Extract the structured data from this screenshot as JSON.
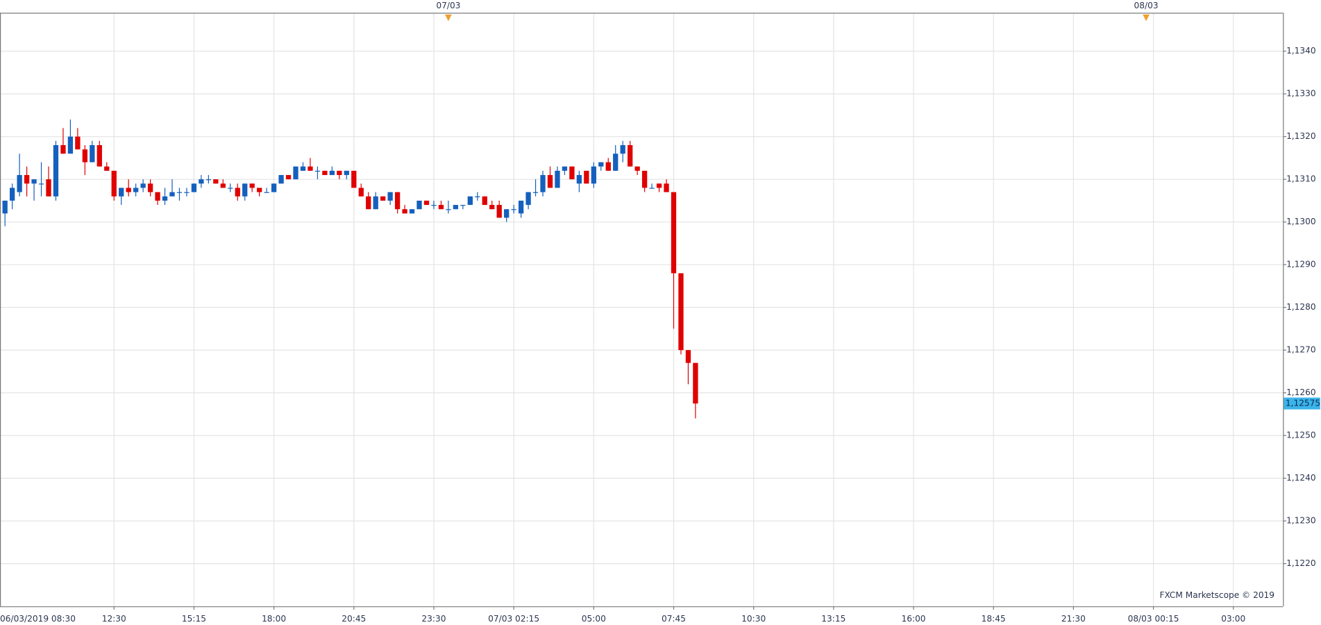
{
  "chart_data": {
    "type": "candlestick",
    "watermark": "FXCM Marketscope © 2019",
    "up_color": "#1560bd",
    "down_color": "#e00000",
    "grid": true,
    "ylim": [
      1.121,
      1.1349
    ],
    "yticks": [
      {
        "value": 1.122,
        "label": "1,1220"
      },
      {
        "value": 1.123,
        "label": "1,1230"
      },
      {
        "value": 1.124,
        "label": "1,1240"
      },
      {
        "value": 1.125,
        "label": "1,1250"
      },
      {
        "value": 1.126,
        "label": "1,1260"
      },
      {
        "value": 1.127,
        "label": "1,1270"
      },
      {
        "value": 1.128,
        "label": "1,1280"
      },
      {
        "value": 1.129,
        "label": "1,1290"
      },
      {
        "value": 1.13,
        "label": "1,1300"
      },
      {
        "value": 1.131,
        "label": "1,1310"
      },
      {
        "value": 1.132,
        "label": "1,1320"
      },
      {
        "value": 1.133,
        "label": "1,1330"
      },
      {
        "value": 1.134,
        "label": "1,1340"
      }
    ],
    "last_price": {
      "value": 1.12575,
      "label": "1,12575",
      "color": "#3ab4ea"
    },
    "day_markers": [
      {
        "value": 62,
        "label": "07/03"
      },
      {
        "value": 158,
        "label": "08/03"
      }
    ],
    "day_marker_color": "#f0a030",
    "categories": [
      "06/03/2019 08:30",
      null,
      null,
      null,
      null,
      null,
      null,
      null,
      null,
      null,
      null,
      null,
      null,
      null,
      null,
      null,
      "12:30",
      null,
      null,
      null,
      null,
      null,
      null,
      null,
      null,
      null,
      null,
      "15:15",
      null,
      null,
      null,
      null,
      null,
      null,
      null,
      null,
      null,
      null,
      "18:00",
      null,
      null,
      null,
      null,
      null,
      null,
      null,
      null,
      null,
      null,
      "20:45",
      null,
      null,
      null,
      null,
      null,
      null,
      null,
      null,
      null,
      null,
      "23:30",
      null,
      null,
      null,
      null,
      null,
      null,
      null,
      null,
      null,
      null,
      "07/03 02:15",
      null,
      null,
      null,
      null,
      null,
      null,
      null,
      null,
      null,
      null,
      "05:00",
      null,
      null,
      null,
      null,
      null,
      null,
      null,
      null,
      null,
      null,
      "07:45",
      null,
      null,
      null,
      null,
      null,
      null,
      null,
      null,
      null,
      null,
      "10:30",
      null,
      null,
      null,
      null,
      null,
      null,
      null,
      null,
      null,
      null,
      "13:15",
      null,
      null,
      null,
      null,
      null,
      null,
      null,
      null,
      null,
      null,
      "16:00",
      null,
      null,
      null,
      null,
      null,
      null,
      null,
      null,
      null,
      null,
      "18:45",
      null,
      null,
      null,
      null,
      null,
      null,
      null,
      null,
      null,
      null,
      "21:30",
      null,
      null,
      null,
      null,
      null,
      null,
      null,
      null,
      null,
      null,
      "08/03 00:15",
      null,
      null,
      null,
      null,
      null,
      null,
      null,
      null,
      null,
      null,
      "03:00",
      null,
      null,
      null,
      null,
      null,
      null
    ],
    "open": [
      null,
      1.1302,
      1.1305,
      1.1307,
      1.1311,
      1.1309,
      1.1309,
      1.131,
      1.1306,
      1.1318,
      1.1316,
      1.132,
      1.1317,
      1.1314,
      1.1318,
      1.1313,
      1.1312,
      1.1306,
      1.1308,
      1.1307,
      1.1308,
      1.1309,
      1.1307,
      1.1305,
      1.1306,
      1.1307,
      1.1307,
      1.1307,
      1.1309,
      1.131,
      1.131,
      1.1309,
      1.1308,
      1.1308,
      1.1306,
      1.1309,
      1.1308,
      1.1307,
      1.1307,
      1.1309,
      1.1311,
      1.131,
      1.1312,
      1.1313,
      1.1312,
      1.1312,
      1.1311,
      1.1312,
      1.1311,
      1.1312,
      1.1308,
      1.1306,
      1.1303,
      1.1306,
      1.1305,
      1.1307,
      1.1303,
      1.1302,
      1.1303,
      1.1305,
      1.1304,
      1.1304,
      1.1303,
      1.1303,
      1.1304,
      1.1304,
      1.1306,
      1.1306,
      1.1304,
      1.1304,
      1.1301,
      1.1303,
      1.1302,
      1.1304,
      1.1307,
      1.1307,
      1.1311,
      1.1308,
      1.1312,
      1.1313,
      1.1309,
      1.1312,
      1.1309,
      1.1313,
      1.1314,
      1.1312,
      1.1316,
      1.1318,
      1.1313,
      1.1312,
      1.1308,
      1.1309,
      1.1309,
      1.1307,
      1.1288,
      1.127,
      1.1267,
      null,
      null,
      null,
      null,
      null,
      null,
      null,
      null,
      null,
      null,
      null,
      null,
      null,
      null,
      null,
      null,
      null,
      null,
      null,
      null,
      null,
      null,
      null,
      null,
      null,
      null,
      null,
      null,
      null,
      null,
      null,
      null,
      null,
      null,
      null,
      null,
      null,
      null,
      null,
      null,
      null,
      null,
      null,
      null,
      null,
      null,
      null,
      null,
      null,
      null,
      null,
      null,
      null,
      null,
      null,
      null,
      null,
      null,
      null,
      null,
      null,
      null,
      null,
      null,
      null,
      null,
      null,
      null,
      null,
      null,
      null,
      null,
      null,
      null,
      null,
      null,
      null,
      null,
      null,
      null
    ],
    "high": [
      null,
      1.1305,
      1.1309,
      1.1316,
      1.1313,
      1.131,
      1.1314,
      1.1313,
      1.1319,
      1.1322,
      1.1324,
      1.1322,
      1.1318,
      1.1319,
      1.1319,
      1.1314,
      1.1312,
      1.1308,
      1.131,
      1.1309,
      1.131,
      1.131,
      1.1307,
      1.1308,
      1.131,
      1.1308,
      1.1308,
      1.1309,
      1.1311,
      1.1311,
      1.131,
      1.131,
      1.1309,
      1.1309,
      1.1309,
      1.1309,
      1.1308,
      1.1308,
      1.1309,
      1.1311,
      1.1311,
      1.1313,
      1.1314,
      1.1315,
      1.1313,
      1.1312,
      1.1313,
      1.1312,
      1.1312,
      1.1312,
      1.1309,
      1.1307,
      1.1307,
      1.1306,
      1.1307,
      1.1307,
      1.1304,
      1.1303,
      1.1305,
      1.1305,
      1.1305,
      1.1305,
      1.1305,
      1.1304,
      1.1304,
      1.1306,
      1.1307,
      1.1306,
      1.1305,
      1.1305,
      1.1303,
      1.1304,
      1.1305,
      1.1307,
      1.131,
      1.1312,
      1.1313,
      1.1313,
      1.1313,
      1.1313,
      1.1312,
      1.1312,
      1.1314,
      1.1314,
      1.1315,
      1.1318,
      1.1319,
      1.1319,
      1.1313,
      1.1312,
      1.1309,
      1.1309,
      1.131,
      1.1307,
      1.1288,
      1.127,
      1.1267,
      null,
      null,
      null,
      null,
      null,
      null,
      null,
      null,
      null,
      null,
      null,
      null,
      null,
      null,
      null,
      null,
      null,
      null,
      null,
      null,
      null,
      null,
      null,
      null,
      null,
      null,
      null,
      null,
      null,
      null,
      null,
      null,
      null,
      null,
      null,
      null,
      null,
      null,
      null,
      null,
      null,
      null,
      null,
      null,
      null,
      null,
      null,
      null,
      null,
      null,
      null,
      null,
      null,
      null,
      null,
      null,
      null,
      null,
      null,
      null,
      null,
      null,
      null,
      null,
      null,
      null,
      null,
      null,
      null,
      null,
      null,
      null,
      null,
      null,
      null,
      null,
      null,
      null,
      null,
      null
    ],
    "low": [
      null,
      1.1299,
      1.1303,
      1.1306,
      1.1306,
      1.1305,
      1.1306,
      1.1306,
      1.1305,
      1.1316,
      1.1316,
      1.1317,
      1.1311,
      1.1314,
      1.1313,
      1.1312,
      1.1305,
      1.1304,
      1.1306,
      1.1306,
      1.1307,
      1.1306,
      1.1304,
      1.1304,
      1.1306,
      1.1305,
      1.1306,
      1.1307,
      1.1308,
      1.1309,
      1.1309,
      1.1308,
      1.1307,
      1.1305,
      1.1305,
      1.1307,
      1.1306,
      1.1307,
      1.1307,
      1.1309,
      1.131,
      1.131,
      1.1312,
      1.1312,
      1.131,
      1.1311,
      1.1311,
      1.131,
      1.131,
      1.1308,
      1.1306,
      1.1303,
      1.1303,
      1.1305,
      1.1304,
      1.1302,
      1.1302,
      1.1302,
      1.1303,
      1.1304,
      1.1303,
      1.1303,
      1.1302,
      1.1303,
      1.1303,
      1.1304,
      1.1305,
      1.1304,
      1.1303,
      1.1301,
      1.13,
      1.1302,
      1.1301,
      1.1303,
      1.1306,
      1.1306,
      1.1308,
      1.1308,
      1.1311,
      1.131,
      1.1307,
      1.1309,
      1.1308,
      1.1312,
      1.1312,
      1.1312,
      1.1314,
      1.1313,
      1.1311,
      1.1307,
      1.1308,
      1.1307,
      1.1307,
      1.1275,
      1.1269,
      1.1262,
      1.1254,
      null,
      null,
      null,
      null,
      null,
      null,
      null,
      null,
      null,
      null,
      null,
      null,
      null,
      null,
      null,
      null,
      null,
      null,
      null,
      null,
      null,
      null,
      null,
      null,
      null,
      null,
      null,
      null,
      null,
      null,
      null,
      null,
      null,
      null,
      null,
      null,
      null,
      null,
      null,
      null,
      null,
      null,
      null,
      null,
      null,
      null,
      null,
      null,
      null,
      null,
      null,
      null,
      null,
      null,
      null,
      null,
      null,
      null,
      null,
      null,
      null,
      null,
      null,
      null,
      null,
      null,
      null,
      null,
      null,
      null,
      null,
      null,
      null,
      null,
      null,
      null,
      null,
      null,
      null,
      null
    ],
    "close": [
      null,
      1.1305,
      1.1308,
      1.1311,
      1.1309,
      1.131,
      1.1309,
      1.1306,
      1.1318,
      1.1316,
      1.132,
      1.1317,
      1.1314,
      1.1318,
      1.1313,
      1.1312,
      1.1306,
      1.1308,
      1.1307,
      1.1308,
      1.1309,
      1.1307,
      1.1305,
      1.1306,
      1.1307,
      1.1307,
      1.1307,
      1.1309,
      1.131,
      1.131,
      1.1309,
      1.1308,
      1.1308,
      1.1306,
      1.1309,
      1.1308,
      1.1307,
      1.1307,
      1.1309,
      1.1311,
      1.131,
      1.1313,
      1.1313,
      1.1312,
      1.1312,
      1.1311,
      1.1312,
      1.1311,
      1.1312,
      1.1308,
      1.1306,
      1.1303,
      1.1306,
      1.1305,
      1.1307,
      1.1303,
      1.1302,
      1.1303,
      1.1305,
      1.1304,
      1.1304,
      1.1303,
      1.1303,
      1.1304,
      1.1304,
      1.1306,
      1.1306,
      1.1304,
      1.1303,
      1.1301,
      1.1303,
      1.1303,
      1.1305,
      1.1307,
      1.1307,
      1.1311,
      1.1308,
      1.1312,
      1.1313,
      1.131,
      1.1311,
      1.1309,
      1.1313,
      1.1314,
      1.1312,
      1.1316,
      1.1318,
      1.1313,
      1.1312,
      1.1308,
      1.1308,
      1.1308,
      1.1307,
      1.1288,
      1.127,
      1.1267,
      1.12575,
      null,
      null,
      null,
      null,
      null,
      null,
      null,
      null,
      null,
      null,
      null,
      null,
      null,
      null,
      null,
      null,
      null,
      null,
      null,
      null,
      null,
      null,
      null,
      null,
      null,
      null,
      null,
      null,
      null,
      null,
      null,
      null,
      null,
      null,
      null,
      null,
      null,
      null,
      null,
      null,
      null,
      null,
      null,
      null,
      null,
      null,
      null,
      null,
      null,
      null,
      null,
      null,
      null,
      null,
      null,
      null,
      null,
      null,
      null,
      null,
      null,
      null,
      null,
      null,
      null,
      null,
      null,
      null,
      null,
      null,
      null,
      null,
      null,
      null,
      null,
      null,
      null,
      null,
      null,
      null
    ]
  }
}
